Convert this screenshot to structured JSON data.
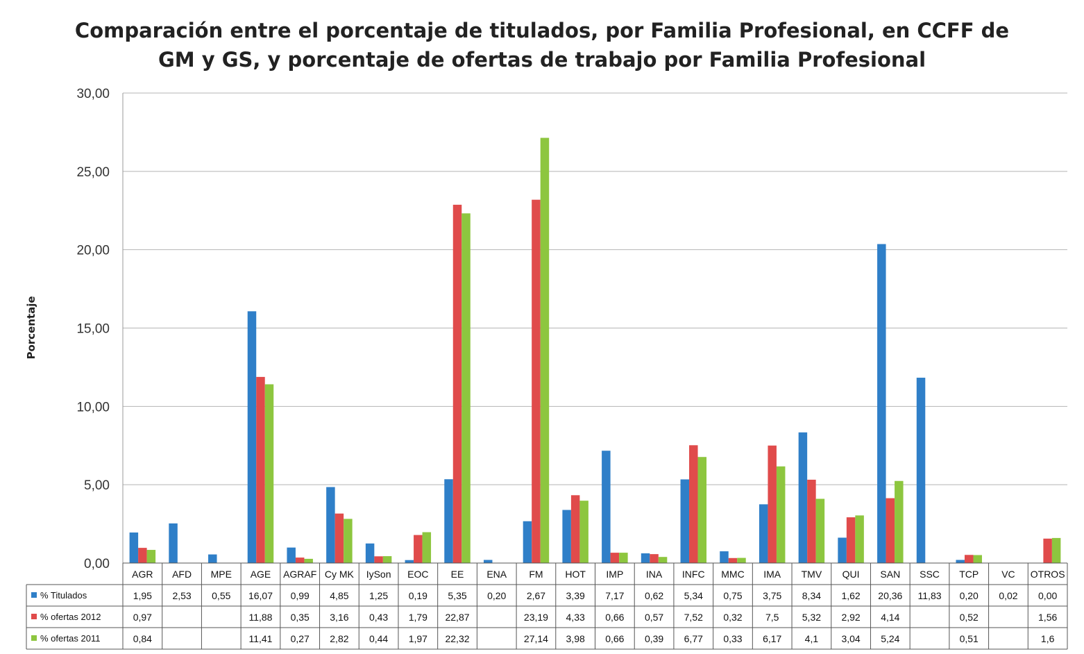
{
  "chart_data": {
    "type": "bar",
    "title_lines": [
      "Comparación entre el porcentaje de titulados, por Familia Profesional, en CCFF de",
      "GM y GS, y porcentaje de ofertas  de trabajo por Familia Profesional"
    ],
    "ylabel": "Porcentaje",
    "ylim": [
      0,
      30
    ],
    "ytick_labels": [
      "0,00",
      "5,00",
      "10,00",
      "15,00",
      "20,00",
      "25,00",
      "30,00"
    ],
    "ytick_values": [
      0,
      5,
      10,
      15,
      20,
      25,
      30
    ],
    "grid": true,
    "legend_position": "data table",
    "categories": [
      "AGR",
      "AFD",
      "MPE",
      "AGE",
      "AGRAF",
      "Cy MK",
      "IySon",
      "EOC",
      "EE",
      "ENA",
      "FM",
      "HOT",
      "IMP",
      "INA",
      "INFC",
      "MMC",
      "IMA",
      "TMV",
      "QUI",
      "SAN",
      "SSC",
      "TCP",
      "VC",
      "OTROS"
    ],
    "series": [
      {
        "name": "% Titulados",
        "color": "#2f7fc8",
        "values": [
          1.95,
          2.53,
          0.55,
          16.07,
          0.99,
          4.85,
          1.25,
          0.19,
          5.35,
          0.2,
          2.67,
          3.39,
          7.17,
          0.62,
          5.34,
          0.75,
          3.75,
          8.34,
          1.62,
          20.36,
          11.83,
          0.2,
          0.02,
          0.0
        ],
        "labels": [
          "1,95",
          "2,53",
          "0,55",
          "16,07",
          "0,99",
          "4,85",
          "1,25",
          "0,19",
          "5,35",
          "0,20",
          "2,67",
          "3,39",
          "7,17",
          "0,62",
          "5,34",
          "0,75",
          "3,75",
          "8,34",
          "1,62",
          "20,36",
          "11,83",
          "0,20",
          "0,02",
          "0,00"
        ]
      },
      {
        "name": "% ofertas 2012",
        "color": "#e04b4b",
        "values": [
          0.97,
          null,
          null,
          11.88,
          0.35,
          3.16,
          0.43,
          1.79,
          22.87,
          null,
          23.19,
          4.33,
          0.66,
          0.57,
          7.52,
          0.32,
          7.5,
          5.32,
          2.92,
          4.14,
          null,
          0.52,
          null,
          1.56
        ],
        "labels": [
          "0,97",
          "",
          "",
          "11,88",
          "0,35",
          "3,16",
          "0,43",
          "1,79",
          "22,87",
          "",
          "23,19",
          "4,33",
          "0,66",
          "0,57",
          "7,52",
          "0,32",
          "7,5",
          "5,32",
          "2,92",
          "4,14",
          "",
          "0,52",
          "",
          "1,56"
        ]
      },
      {
        "name": "% ofertas 2011",
        "color": "#8dc63f",
        "values": [
          0.84,
          null,
          null,
          11.41,
          0.27,
          2.82,
          0.44,
          1.97,
          22.32,
          null,
          27.14,
          3.98,
          0.66,
          0.39,
          6.77,
          0.33,
          6.17,
          4.1,
          3.04,
          5.24,
          null,
          0.51,
          null,
          1.6
        ],
        "labels": [
          "0,84",
          "",
          "",
          "11,41",
          "0,27",
          "2,82",
          "0,44",
          "1,97",
          "22,32",
          "",
          "27,14",
          "3,98",
          "0,66",
          "0,39",
          "6,77",
          "0,33",
          "6,17",
          "4,1",
          "3,04",
          "5,24",
          "",
          "0,51",
          "",
          "1,6"
        ]
      }
    ]
  }
}
